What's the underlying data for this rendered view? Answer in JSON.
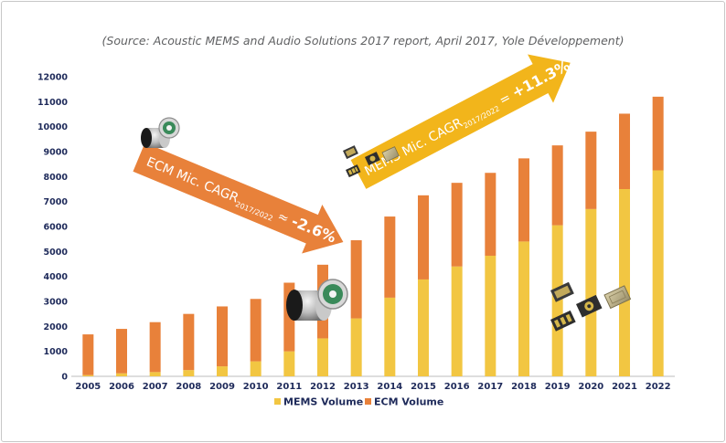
{
  "source_note": "(Source: Acoustic MEMS and Audio Solutions 2017 report, April 2017, Yole Développement)",
  "colors": {
    "mems": "#f2c642",
    "ecm": "#e8813a",
    "axis_text": "#1e2a5a",
    "gridline": "#cfcfcf"
  },
  "ecm_arrow": {
    "label_prefix": "ECM Mic. CAGR",
    "label_sub": "2017/2022",
    "label_sep": " ≈ ",
    "label_value": "-2.6%",
    "color": "#e8813a"
  },
  "mems_arrow": {
    "label_prefix": "MEMS Mic. CAGR",
    "label_sub": "2017/2022",
    "label_sep": " = ",
    "label_value": "+11.3%",
    "color": "#f2b51b"
  },
  "chart_data": {
    "type": "bar",
    "stacked": true,
    "categories": [
      "2005",
      "2006",
      "2007",
      "2008",
      "2009",
      "2010",
      "2011",
      "2012",
      "2013",
      "2014",
      "2015",
      "2016",
      "2017",
      "2018",
      "2019",
      "2020",
      "2021",
      "2022"
    ],
    "series": [
      {
        "name": "MEMS Volume",
        "values": [
          50,
          120,
          170,
          250,
          400,
          600,
          1000,
          1520,
          2320,
          3150,
          3880,
          4400,
          4830,
          5400,
          6050,
          6700,
          7500,
          8250
        ]
      },
      {
        "name": "ECM Volume",
        "values": [
          1630,
          1780,
          2000,
          2250,
          2400,
          2500,
          2750,
          2950,
          3130,
          3250,
          3370,
          3350,
          3320,
          3330,
          3200,
          3100,
          3020,
          2950
        ]
      }
    ],
    "yticks": [
      "0",
      "1000",
      "2000",
      "3000",
      "4000",
      "5000",
      "6000",
      "7000",
      "8000",
      "9000",
      "10000",
      "11000",
      "12000"
    ],
    "ylim": [
      0,
      12000
    ],
    "xlabel": "",
    "ylabel": "",
    "grid": false,
    "legend": "bottom-center"
  }
}
